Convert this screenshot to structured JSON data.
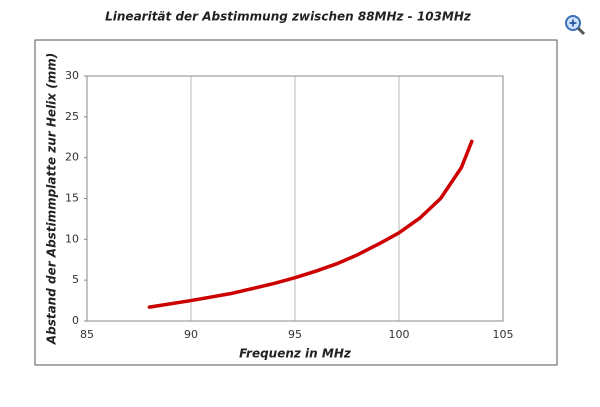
{
  "chart_data": {
    "type": "line",
    "title": "Linearität der Abstimmung zwischen 88MHz - 103MHz",
    "xlabel": "Frequenz in MHz",
    "ylabel": "Abstand der Abstimmplatte zur Helix (mm)",
    "x": [
      88,
      90,
      92,
      94,
      95,
      96,
      97,
      98,
      99,
      100,
      101,
      102,
      103,
      103.5
    ],
    "series": [
      {
        "color": "#cc0000",
        "values": [
          1.7,
          2.5,
          3.4,
          4.6,
          5.3,
          6.1,
          7.0,
          8.1,
          9.4,
          10.8,
          12.6,
          15.0,
          18.8,
          22
        ]
      }
    ],
    "xlim": [
      85,
      105
    ],
    "xticks": [
      85,
      90,
      95,
      100,
      105
    ],
    "ylim": [
      0,
      30
    ],
    "yticks": [
      0,
      5,
      10,
      15,
      20,
      25,
      30
    ],
    "grid": "x"
  }
}
